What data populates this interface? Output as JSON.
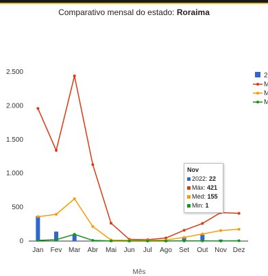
{
  "chart_data": {
    "type": "line",
    "title_prefix": "Comparativo mensal do estado:",
    "title_state": "Roraima",
    "xlabel": "Mês",
    "ylabel": "",
    "categories": [
      "Jan",
      "Fev",
      "Mar",
      "Abr",
      "Mai",
      "Jun",
      "Jul",
      "Ago",
      "Set",
      "Out",
      "Nov",
      "Dez"
    ],
    "ylim": [
      0,
      2500
    ],
    "yticks": [
      0,
      500,
      1000,
      1500,
      2000,
      2500
    ],
    "ytick_labels": [
      "0",
      "500",
      "1.000",
      "1.500",
      "2.000",
      "2.500"
    ],
    "series": [
      {
        "name": "",
        "kind": "bar",
        "color": "#3366cc",
        "values": [
          370,
          140,
          90,
          5,
          2,
          2,
          2,
          2,
          55,
          95,
          22,
          null
        ]
      },
      {
        "name": "",
        "kind": "line",
        "color": "#dc3912",
        "values": [
          1960,
          1340,
          2440,
          1130,
          265,
          25,
          20,
          45,
          160,
          260,
          421,
          410
        ]
      },
      {
        "name": "",
        "kind": "line",
        "color": "#ff9900",
        "values": [
          360,
          395,
          625,
          215,
          15,
          10,
          10,
          15,
          55,
          105,
          155,
          175
        ]
      },
      {
        "name": "",
        "kind": "line",
        "color": "#109618",
        "values": [
          10,
          20,
          100,
          10,
          2,
          1,
          1,
          1,
          3,
          3,
          1,
          5
        ]
      }
    ],
    "legend": {
      "placement": "right",
      "entries": [
        {
          "label": "2",
          "color": "#3366cc",
          "kind": "bar"
        },
        {
          "label": "M",
          "color": "#dc3912",
          "kind": "line"
        },
        {
          "label": "M",
          "color": "#ff9900",
          "kind": "line"
        },
        {
          "label": "M",
          "color": "#109618",
          "kind": "line"
        }
      ]
    },
    "tooltip": {
      "title": "Nov",
      "rows": [
        {
          "label": "2022:",
          "value": "22",
          "color": "#3366cc"
        },
        {
          "label": "Máx:",
          "value": "421",
          "color": "#dc3912"
        },
        {
          "label": "Méd:",
          "value": "155",
          "color": "#ff9900"
        },
        {
          "label": "Min:",
          "value": "1",
          "color": "#109618"
        }
      ]
    },
    "grid": false
  }
}
